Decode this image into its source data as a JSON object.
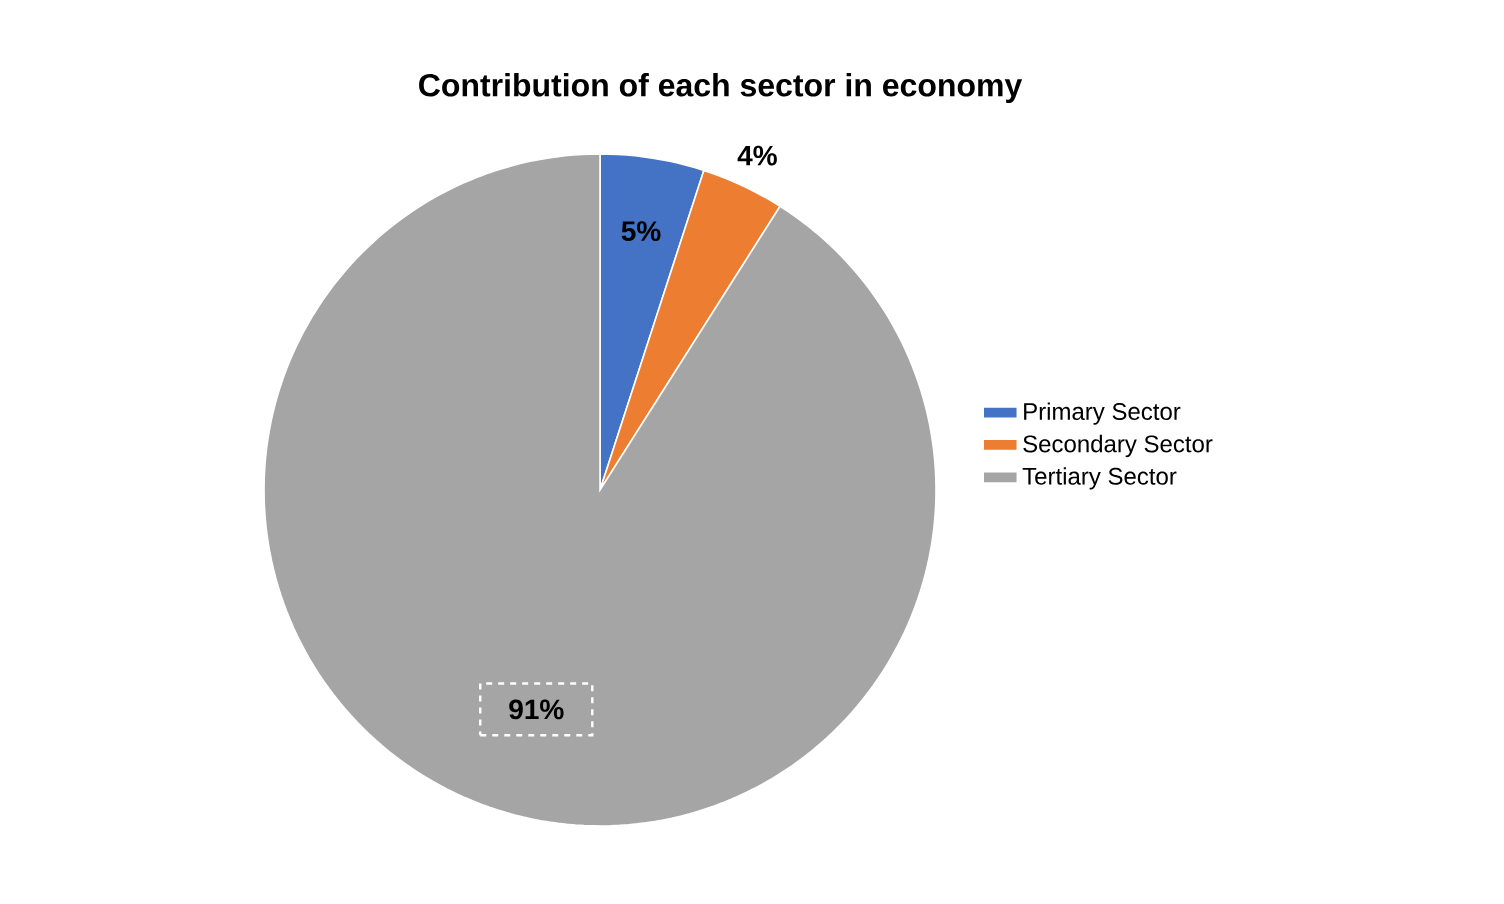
{
  "chart_data": {
    "type": "pie",
    "title": "Contribution of each sector in economy",
    "categories": [
      "Primary Sector",
      "Secondary Sector",
      "Tertiary Sector"
    ],
    "values": [
      5,
      4,
      91
    ],
    "colors": [
      "#4472c4",
      "#ed7d31",
      "#a5a5a5"
    ],
    "value_labels": [
      "5%",
      "4%",
      "91%"
    ],
    "legend": "right"
  }
}
